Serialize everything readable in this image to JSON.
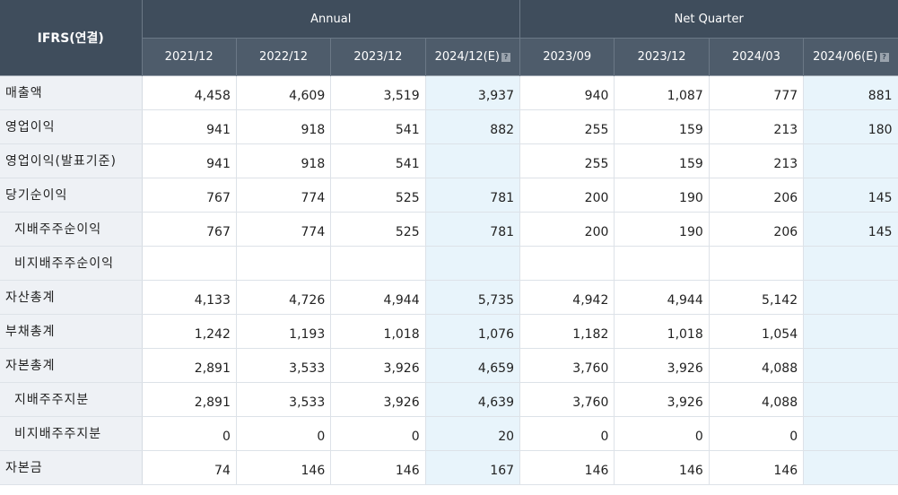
{
  "header": {
    "corner": "IFRS(연결)",
    "group_annual": "Annual",
    "group_quarter": "Net Quarter",
    "columns": [
      "2021/12",
      "2022/12",
      "2023/12",
      "2024/12(E)",
      "2023/09",
      "2023/12",
      "2024/03",
      "2024/06(E)"
    ],
    "help_glyph": "?"
  },
  "rows": [
    {
      "label": "매출액",
      "values": [
        "4,458",
        "4,609",
        "3,519",
        "3,937",
        "940",
        "1,087",
        "777",
        "881"
      ]
    },
    {
      "label": "영업이익",
      "values": [
        "941",
        "918",
        "541",
        "882",
        "255",
        "159",
        "213",
        "180"
      ]
    },
    {
      "label": "영업이익(발표기준)",
      "values": [
        "941",
        "918",
        "541",
        "",
        "255",
        "159",
        "213",
        ""
      ]
    },
    {
      "label": "당기순이익",
      "values": [
        "767",
        "774",
        "525",
        "781",
        "200",
        "190",
        "206",
        "145"
      ]
    },
    {
      "label": "지배주주순이익",
      "values": [
        "767",
        "774",
        "525",
        "781",
        "200",
        "190",
        "206",
        "145"
      ]
    },
    {
      "label": "비지배주주순이익",
      "values": [
        "",
        "",
        "",
        "",
        "",
        "",
        "",
        ""
      ]
    },
    {
      "label": "자산총계",
      "values": [
        "4,133",
        "4,726",
        "4,944",
        "5,735",
        "4,942",
        "4,944",
        "5,142",
        ""
      ]
    },
    {
      "label": "부채총계",
      "values": [
        "1,242",
        "1,193",
        "1,018",
        "1,076",
        "1,182",
        "1,018",
        "1,054",
        ""
      ]
    },
    {
      "label": "자본총계",
      "values": [
        "2,891",
        "3,533",
        "3,926",
        "4,659",
        "3,760",
        "3,926",
        "4,088",
        ""
      ]
    },
    {
      "label": "지배주주지분",
      "values": [
        "2,891",
        "3,533",
        "3,926",
        "4,639",
        "3,760",
        "3,926",
        "4,088",
        ""
      ]
    },
    {
      "label": "비지배주주지분",
      "values": [
        "0",
        "0",
        "0",
        "20",
        "0",
        "0",
        "0",
        ""
      ]
    },
    {
      "label": "자본금",
      "values": [
        "74",
        "146",
        "146",
        "167",
        "146",
        "146",
        "146",
        ""
      ]
    }
  ]
}
